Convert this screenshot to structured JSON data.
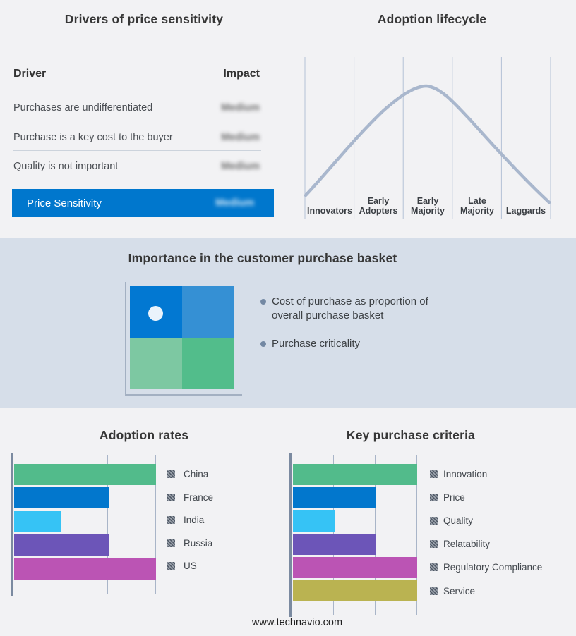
{
  "colors": {
    "page_bg": "#f2f2f4",
    "band_bg": "#d6dee9",
    "accent_blue": "#0077cd",
    "curve": "#a9b7cd",
    "axis": "#7b8aa0",
    "gridline": "#a9b5c8"
  },
  "drivers_panel": {
    "title": "Drivers of price sensitivity",
    "columns": [
      "Driver",
      "Impact"
    ],
    "rows": [
      {
        "driver": "Purchases are undifferentiated",
        "impact": "Medium",
        "impact_redacted": true
      },
      {
        "driver": "Purchase is a key cost to the buyer",
        "impact": "Medium",
        "impact_redacted": true
      },
      {
        "driver": "Quality is not important",
        "impact": "Medium",
        "impact_redacted": true
      }
    ],
    "summary": {
      "label": "Price Sensitivity",
      "impact": "Medium",
      "impact_redacted": true
    }
  },
  "basket_panel": {
    "title": "Importance in the customer purchase basket",
    "bullets": [
      "Cost of purchase as proportion of overall purchase basket",
      "Purchase criticality"
    ],
    "quadrant_colors": {
      "top_left": "#0278d2",
      "top_right": "#3590d4",
      "bottom_left": "#7dc8a2",
      "bottom_right": "#52bd8b"
    }
  },
  "footer": {
    "website": "www.technavio.com"
  },
  "chart_data": [
    {
      "id": "adoption-lifecycle",
      "type": "line",
      "shape": "bell-curve",
      "title": "Adoption lifecycle",
      "categories": [
        "Innovators",
        "Early Adopters",
        "Early Majority",
        "Late Majority",
        "Laggards"
      ],
      "values_normalized": [
        0.15,
        0.55,
        1.0,
        0.6,
        0.12
      ],
      "peak_category": "Early Majority",
      "grid": "vertical-only",
      "line_color": "#a9b7cd"
    },
    {
      "id": "adoption-rates",
      "type": "bar",
      "orientation": "horizontal",
      "title": "Adoption rates",
      "categories": [
        "China",
        "France",
        "India",
        "Russia",
        "US"
      ],
      "values": [
        3,
        2,
        1,
        2,
        3
      ],
      "xlim": [
        0,
        3
      ],
      "bar_colors": [
        "#52bb8b",
        "#0277cd",
        "#36c3f5",
        "#6c55b8",
        "#bb54b4"
      ],
      "legend_position": "right",
      "value_labels": "none"
    },
    {
      "id": "key-purchase-criteria",
      "type": "bar",
      "orientation": "horizontal",
      "title": "Key purchase criteria",
      "categories": [
        "Innovation",
        "Price",
        "Quality",
        "Relatability",
        "Regulatory Compliance",
        "Service"
      ],
      "values": [
        3,
        2,
        1,
        2,
        3,
        3
      ],
      "xlim": [
        0,
        3
      ],
      "bar_colors": [
        "#52bb8b",
        "#0277cd",
        "#36c3f5",
        "#6c55b8",
        "#bb54b4",
        "#bab351"
      ],
      "legend_position": "right",
      "value_labels": "none"
    }
  ]
}
